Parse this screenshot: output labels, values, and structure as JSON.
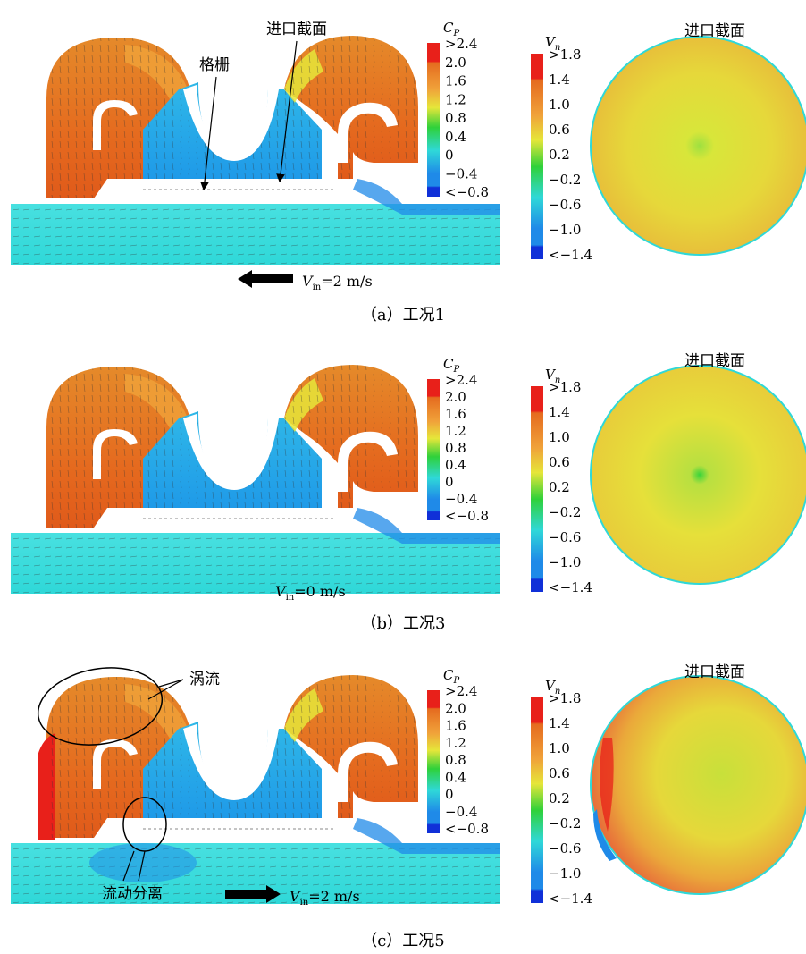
{
  "colors": {
    "red": "#e8201a",
    "orange": "#e56b1f",
    "orange_light": "#f0a23a",
    "yellow": "#e6e63a",
    "green": "#2fd13a",
    "cyan": "#2fd8d8",
    "cyan_light": "#48e0e0",
    "blue": "#1f8ae8",
    "blue_dark": "#1030d8",
    "text": "#000000"
  },
  "labels": {
    "grille": "格栅",
    "inlet_section": "进口截面",
    "vortex": "涡流",
    "separation": "流动分离"
  },
  "cp_legend": {
    "title_main": "C",
    "title_sub": "P",
    "ticks": [
      ">2.4",
      "2.0",
      "1.6",
      "1.2",
      "0.8",
      "0.4",
      "0",
      "−0.4",
      "<−0.8"
    ]
  },
  "vn_legend": {
    "title_main": "V",
    "title_sub": "n",
    "ticks": [
      ">1.8",
      "1.4",
      "1.0",
      "0.6",
      "0.2",
      "−0.2",
      "−0.6",
      "−1.0",
      "<−1.4"
    ]
  },
  "panels": [
    {
      "caption": "（a）工况1",
      "section_title": "进口截面",
      "velocity_main": "V",
      "velocity_sub": "in",
      "velocity_value": "=2 m/s",
      "arrow_direction": "left"
    },
    {
      "caption": "（b）工况3",
      "section_title": "进口截面",
      "velocity_main": "V",
      "velocity_sub": "in",
      "velocity_value": "=0 m/s",
      "arrow_direction": "none"
    },
    {
      "caption": "（c）工况5",
      "section_title": "进口截面",
      "velocity_main": "V",
      "velocity_sub": "in",
      "velocity_value": "=2 m/s",
      "arrow_direction": "right"
    }
  ]
}
